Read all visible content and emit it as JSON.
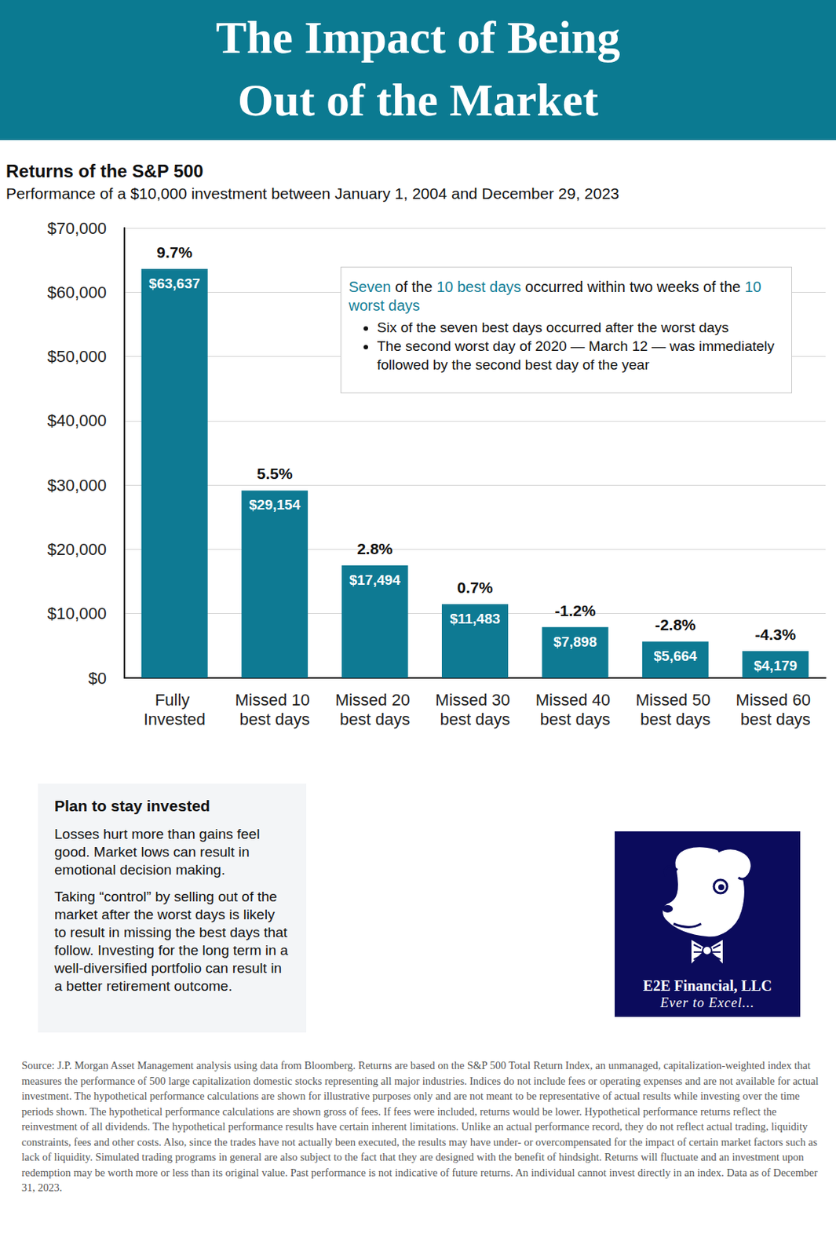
{
  "header": {
    "title_lines": [
      "The Impact of Being",
      "Out of the Market"
    ]
  },
  "chart_data": {
    "type": "bar",
    "title": "Returns of the S&P 500",
    "subtitle": "Performance of a $10,000 investment between January 1, 2004 and December 29, 2023",
    "categories": [
      "Fully Invested",
      "Missed 10 best days",
      "Missed 20 best days",
      "Missed 30 best days",
      "Missed 40 best days",
      "Missed 50 best days",
      "Missed 60 best days"
    ],
    "values": [
      63637,
      29154,
      17494,
      11483,
      7898,
      5664,
      4179
    ],
    "value_labels": [
      "$63,637",
      "$29,154",
      "$17,494",
      "$11,483",
      "$7,898",
      "$5,664",
      "$4,179"
    ],
    "annualized_returns": [
      9.7,
      5.5,
      2.8,
      0.7,
      -1.2,
      -2.8,
      -4.3
    ],
    "annualized_return_labels": [
      "9.7%",
      "5.5%",
      "2.8%",
      "0.7%",
      "-1.2%",
      "-2.8%",
      "-4.3%"
    ],
    "color": "#0e7a93",
    "ylim": [
      0,
      70000
    ],
    "yticks": [
      {
        "value": 0,
        "label": "$0"
      },
      {
        "value": 10000,
        "label": "$10,000"
      },
      {
        "value": 20000,
        "label": "$20,000"
      },
      {
        "value": 30000,
        "label": "$30,000"
      },
      {
        "value": 40000,
        "label": "$40,000"
      },
      {
        "value": 50000,
        "label": "$50,000"
      },
      {
        "value": 60000,
        "label": "$60,000"
      },
      {
        "value": 70000,
        "label": "$70,000"
      }
    ],
    "grid": true,
    "data_labels": true,
    "annotation": {
      "heading": [
        {
          "text": "Seven",
          "highlight": true
        },
        {
          "text": " of the ",
          "highlight": false
        },
        {
          "text": "10 best days",
          "highlight": true
        },
        {
          "text": " occurred within two weeks of the ",
          "highlight": false
        },
        {
          "text": "10 worst days",
          "highlight": true
        }
      ],
      "bullets": [
        "Six of the seven best days occurred after the worst days",
        "The second worst day of 2020 — March 12 — was immediately followed by the second best day of the year"
      ]
    }
  },
  "plan_box": {
    "title": "Plan to stay invested",
    "paragraphs": [
      "Losses hurt more than gains feel good. Market lows can result in emotional decision making.",
      "Taking “control” by selling out of the market after the worst days is likely to result in missing the best days that follow. Investing for the long term in a well-diversified portfolio can result in a better retirement outcome."
    ]
  },
  "logo": {
    "name": "E2E Financial, LLC",
    "tagline": "Ever to Excel..."
  },
  "source": "Source: J.P. Morgan Asset Management analysis using data from Bloomberg. Returns are based on the S&P 500 Total Return Index, an unmanaged, capitalization-weighted index that measures the performance of 500 large capitalization domestic stocks representing all major industries. Indices do not include fees or operating expenses and are not available for actual investment. The hypothetical performance calculations are shown for illustrative purposes only and are not meant to be representative of actual results while investing over the time periods shown. The hypothetical performance calculations are shown gross of fees. If fees were included, returns would be lower. Hypothetical performance returns reflect the reinvestment of all dividends. The hypothetical performance results have certain inherent limitations. Unlike an actual performance record, they do not reflect actual trading, liquidity constraints, fees and other costs. Also, since the trades have not actually been executed, the results may have under- or overcompensated for the impact of certain market factors such as lack of liquidity. Simulated trading programs in general are also subject to the fact that they are designed with the benefit of hindsight. Returns will fluctuate and an investment upon redemption may be worth more or less than its original value. Past performance is not indicative of future returns. An individual cannot invest directly in an index. Data as of December 31, 2023."
}
